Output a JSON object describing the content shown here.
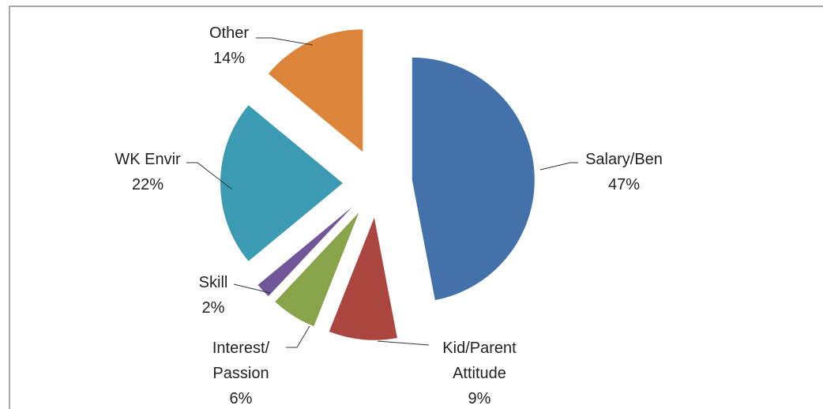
{
  "chart_data": {
    "type": "pie",
    "categories": [
      "Salary/Ben",
      "Kid/Parent\nAttitude",
      "Interest/\nPassion",
      "Skill",
      "WK Envir",
      "Other"
    ],
    "values": [
      47,
      9,
      6,
      2,
      22,
      14
    ],
    "value_labels": [
      "47%",
      "9%",
      "6%",
      "2%",
      "22%",
      "14%"
    ],
    "colors": [
      "#4272a9",
      "#aa4540",
      "#88a44a",
      "#71579a",
      "#3a9bb3",
      "#db843a"
    ],
    "exploded": true
  }
}
